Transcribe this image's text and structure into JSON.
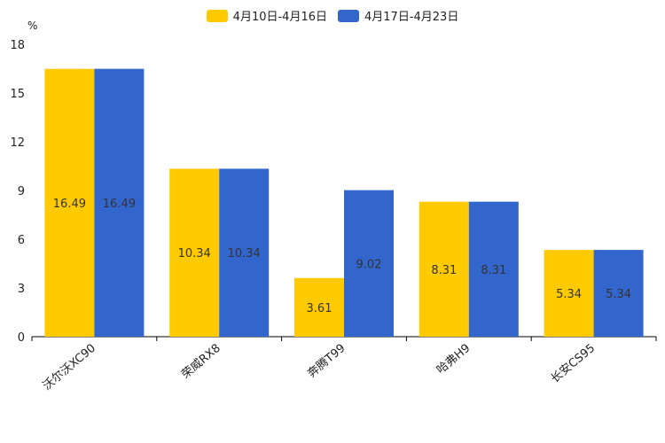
{
  "chart_data": {
    "type": "bar",
    "ylabel": "%",
    "ylim": [
      0,
      18
    ],
    "yticks": [
      0,
      3,
      6,
      9,
      12,
      15,
      18
    ],
    "categories": [
      "沃尔沃XC90",
      "荣威RX8",
      "奔腾T99",
      "哈弗H9",
      "长安CS95"
    ],
    "series": [
      {
        "name": "4月10日-4月16日",
        "color": "#FFCA00",
        "values": [
          16.49,
          10.34,
          3.61,
          8.31,
          5.34
        ]
      },
      {
        "name": "4月17日-4月23日",
        "color": "#3366CC",
        "values": [
          16.49,
          10.34,
          9.02,
          8.31,
          5.34
        ]
      }
    ],
    "legend_position": "top-center",
    "grid": false
  }
}
